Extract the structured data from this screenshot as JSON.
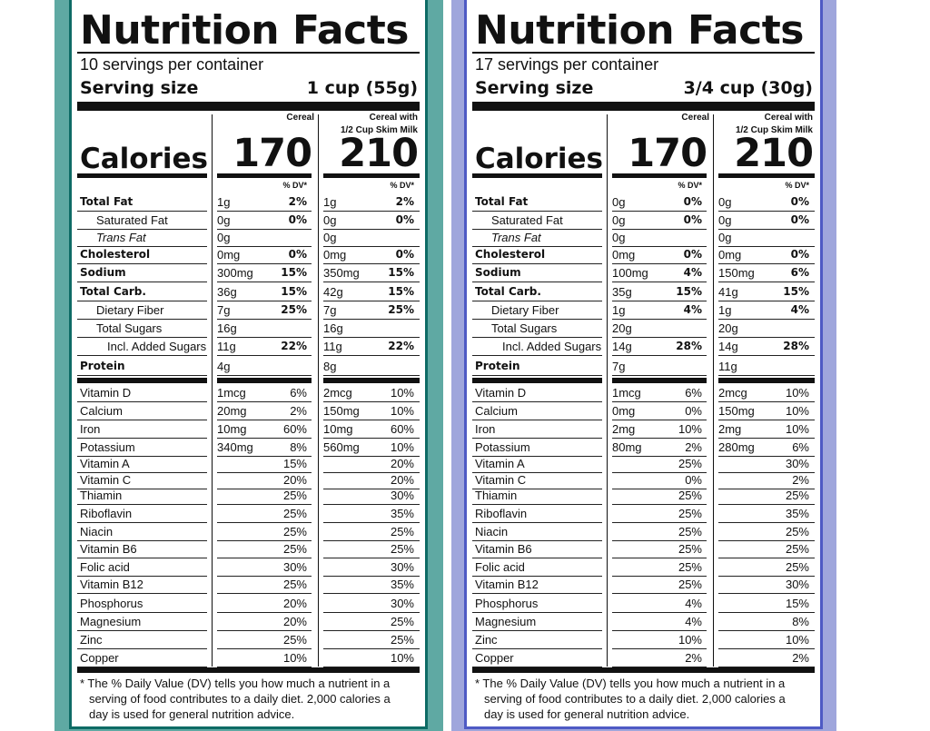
{
  "colors": {
    "left_bg": "#5fa9a3",
    "left_border": "#0e6b65",
    "right_bg": "#9fa6dc",
    "right_border": "#4e5ac4"
  },
  "panels": [
    {
      "title": "Nutrition Facts",
      "servings": "10 servings per container",
      "serving_size_label": "Serving size",
      "serving_size_value": "1 cup (55g)",
      "col1_header": "Cereal",
      "col2_header_line1": "Cereal with",
      "col2_header_line2": "1/2 Cup Skim Milk",
      "calories_label": "Calories",
      "calories_col1": "170",
      "calories_col2": "210",
      "dv_label": "% DV*",
      "rows_main": [
        {
          "name": "Total Fat",
          "a1": "1g",
          "p1": "2%",
          "a2": "1g",
          "p2": "2%"
        },
        {
          "name": "Saturated Fat",
          "a1": "0g",
          "p1": "0%",
          "a2": "0g",
          "p2": "0%"
        },
        {
          "name": "Trans Fat",
          "a1": "0g",
          "p1": "",
          "a2": "0g",
          "p2": ""
        },
        {
          "name": "Cholesterol",
          "a1": "0mg",
          "p1": "0%",
          "a2": "0mg",
          "p2": "0%"
        },
        {
          "name": "Sodium",
          "a1": "300mg",
          "p1": "15%",
          "a2": "350mg",
          "p2": "15%"
        },
        {
          "name": "Total Carb.",
          "a1": "36g",
          "p1": "15%",
          "a2": "42g",
          "p2": "15%"
        },
        {
          "name": "Dietary Fiber",
          "a1": "7g",
          "p1": "25%",
          "a2": "7g",
          "p2": "25%"
        },
        {
          "name": "Total Sugars",
          "a1": "16g",
          "p1": "",
          "a2": "16g",
          "p2": ""
        },
        {
          "name": "Incl. Added Sugars",
          "a1": "11g",
          "p1": "22%",
          "a2": "11g",
          "p2": "22%"
        },
        {
          "name": "Protein",
          "a1": "4g",
          "p1": "",
          "a2": "8g",
          "p2": ""
        }
      ],
      "rows_vit": [
        {
          "name": "Vitamin D",
          "a1": "1mcg",
          "p1": "6%",
          "a2": "2mcg",
          "p2": "10%"
        },
        {
          "name": "Calcium",
          "a1": "20mg",
          "p1": "2%",
          "a2": "150mg",
          "p2": "10%"
        },
        {
          "name": "Iron",
          "a1": "10mg",
          "p1": "60%",
          "a2": "10mg",
          "p2": "60%"
        },
        {
          "name": "Potassium",
          "a1": "340mg",
          "p1": "8%",
          "a2": "560mg",
          "p2": "10%"
        },
        {
          "name": "Vitamin A",
          "a1": "",
          "p1": "15%",
          "a2": "",
          "p2": "20%"
        },
        {
          "name": "Vitamin C",
          "a1": "",
          "p1": "20%",
          "a2": "",
          "p2": "20%"
        },
        {
          "name": "Thiamin",
          "a1": "",
          "p1": "25%",
          "a2": "",
          "p2": "30%"
        },
        {
          "name": "Riboflavin",
          "a1": "",
          "p1": "25%",
          "a2": "",
          "p2": "35%"
        },
        {
          "name": "Niacin",
          "a1": "",
          "p1": "25%",
          "a2": "",
          "p2": "25%"
        },
        {
          "name": "Vitamin B6",
          "a1": "",
          "p1": "25%",
          "a2": "",
          "p2": "25%"
        },
        {
          "name": "Folic acid",
          "a1": "",
          "p1": "30%",
          "a2": "",
          "p2": "30%"
        },
        {
          "name": "Vitamin B12",
          "a1": "",
          "p1": "25%",
          "a2": "",
          "p2": "35%"
        },
        {
          "name": "Phosphorus",
          "a1": "",
          "p1": "20%",
          "a2": "",
          "p2": "30%"
        },
        {
          "name": "Magnesium",
          "a1": "",
          "p1": "20%",
          "a2": "",
          "p2": "25%"
        },
        {
          "name": "Zinc",
          "a1": "",
          "p1": "25%",
          "a2": "",
          "p2": "25%"
        },
        {
          "name": "Copper",
          "a1": "",
          "p1": "10%",
          "a2": "",
          "p2": "10%"
        }
      ],
      "footnote_l1": "* The % Daily Value (DV) tells you how much a nutrient in a",
      "footnote_l2": "serving of food contributes to a daily diet. 2,000 calories a",
      "footnote_l3": "day is used for general nutrition advice."
    },
    {
      "title": "Nutrition Facts",
      "servings": "17 servings per container",
      "serving_size_label": "Serving size",
      "serving_size_value": "3/4 cup (30g)",
      "col1_header": "Cereal",
      "col2_header_line1": "Cereal with",
      "col2_header_line2": "1/2 Cup Skim Milk",
      "calories_label": "Calories",
      "calories_col1": "170",
      "calories_col2": "210",
      "dv_label": "% DV*",
      "rows_main": [
        {
          "name": "Total Fat",
          "a1": "0g",
          "p1": "0%",
          "a2": "0g",
          "p2": "0%"
        },
        {
          "name": "Saturated Fat",
          "a1": "0g",
          "p1": "0%",
          "a2": "0g",
          "p2": "0%"
        },
        {
          "name": "Trans Fat",
          "a1": "0g",
          "p1": "",
          "a2": "0g",
          "p2": ""
        },
        {
          "name": "Cholesterol",
          "a1": "0mg",
          "p1": "0%",
          "a2": "0mg",
          "p2": "0%"
        },
        {
          "name": "Sodium",
          "a1": "100mg",
          "p1": "4%",
          "a2": "150mg",
          "p2": "6%"
        },
        {
          "name": "Total Carb.",
          "a1": "35g",
          "p1": "15%",
          "a2": "41g",
          "p2": "15%"
        },
        {
          "name": "Dietary Fiber",
          "a1": "1g",
          "p1": "4%",
          "a2": "1g",
          "p2": "4%"
        },
        {
          "name": "Total Sugars",
          "a1": "20g",
          "p1": "",
          "a2": "20g",
          "p2": ""
        },
        {
          "name": "Incl. Added Sugars",
          "a1": "14g",
          "p1": "28%",
          "a2": "14g",
          "p2": "28%"
        },
        {
          "name": "Protein",
          "a1": "7g",
          "p1": "",
          "a2": "11g",
          "p2": ""
        }
      ],
      "rows_vit": [
        {
          "name": "Vitamin D",
          "a1": "1mcg",
          "p1": "6%",
          "a2": "2mcg",
          "p2": "10%"
        },
        {
          "name": "Calcium",
          "a1": "0mg",
          "p1": "0%",
          "a2": "150mg",
          "p2": "10%"
        },
        {
          "name": "Iron",
          "a1": "2mg",
          "p1": "10%",
          "a2": "2mg",
          "p2": "10%"
        },
        {
          "name": "Potassium",
          "a1": "80mg",
          "p1": "2%",
          "a2": "280mg",
          "p2": "6%"
        },
        {
          "name": "Vitamin A",
          "a1": "",
          "p1": "25%",
          "a2": "",
          "p2": "30%"
        },
        {
          "name": "Vitamin C",
          "a1": "",
          "p1": "0%",
          "a2": "",
          "p2": "2%"
        },
        {
          "name": "Thiamin",
          "a1": "",
          "p1": "25%",
          "a2": "",
          "p2": "25%"
        },
        {
          "name": "Riboflavin",
          "a1": "",
          "p1": "25%",
          "a2": "",
          "p2": "35%"
        },
        {
          "name": "Niacin",
          "a1": "",
          "p1": "25%",
          "a2": "",
          "p2": "25%"
        },
        {
          "name": "Vitamin B6",
          "a1": "",
          "p1": "25%",
          "a2": "",
          "p2": "25%"
        },
        {
          "name": "Folic acid",
          "a1": "",
          "p1": "25%",
          "a2": "",
          "p2": "25%"
        },
        {
          "name": "Vitamin B12",
          "a1": "",
          "p1": "25%",
          "a2": "",
          "p2": "30%"
        },
        {
          "name": "Phosphorus",
          "a1": "",
          "p1": "4%",
          "a2": "",
          "p2": "15%"
        },
        {
          "name": "Magnesium",
          "a1": "",
          "p1": "4%",
          "a2": "",
          "p2": "8%"
        },
        {
          "name": "Zinc",
          "a1": "",
          "p1": "10%",
          "a2": "",
          "p2": "10%"
        },
        {
          "name": "Copper",
          "a1": "",
          "p1": "2%",
          "a2": "",
          "p2": "2%"
        }
      ],
      "footnote_l1": "* The % Daily Value (DV) tells you how much a nutrient in a",
      "footnote_l2": "serving of food contributes to a daily diet. 2,000 calories a",
      "footnote_l3": "day is used for general nutrition advice."
    }
  ]
}
